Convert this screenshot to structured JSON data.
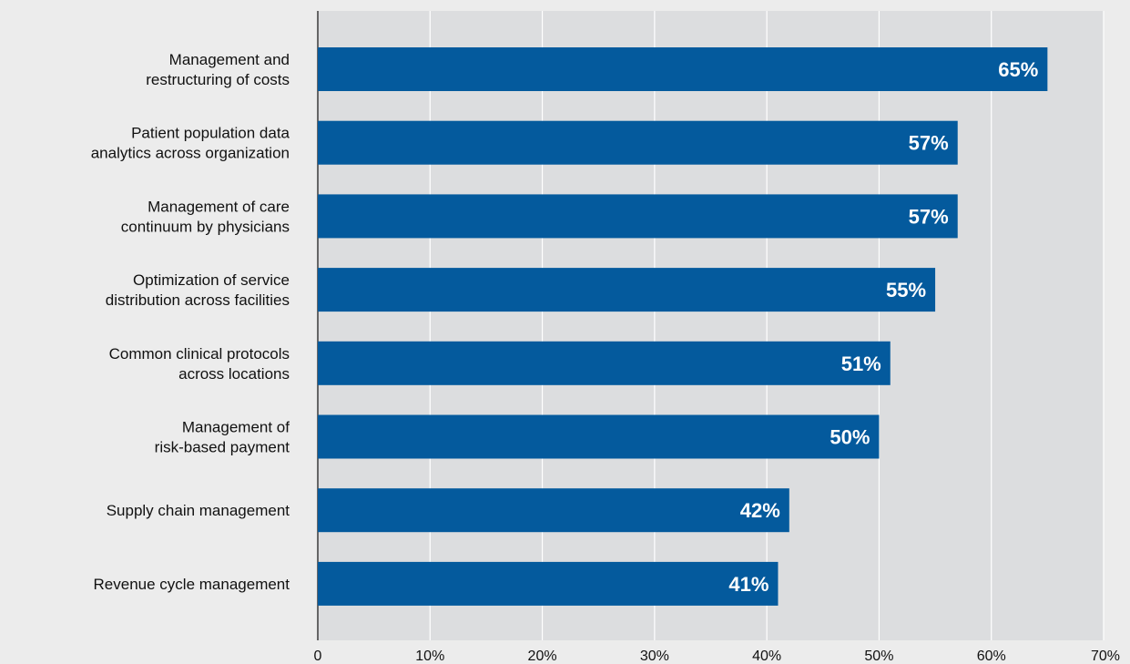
{
  "chart_data": {
    "type": "bar",
    "orientation": "horizontal",
    "categories": [
      [
        "Management and",
        "restructuring of costs"
      ],
      [
        "Patient population data",
        "analytics across organization"
      ],
      [
        "Management of care",
        "continuum by physicians"
      ],
      [
        "Optimization of service",
        "distribution across facilities"
      ],
      [
        "Common clinical protocols",
        "across locations"
      ],
      [
        "Management of",
        "risk-based payment"
      ],
      [
        "Supply chain management"
      ],
      [
        "Revenue cycle management"
      ]
    ],
    "values": [
      65,
      57,
      57,
      55,
      51,
      50,
      42,
      41
    ],
    "data_labels": [
      "65%",
      "57%",
      "57%",
      "55%",
      "51%",
      "50%",
      "42%",
      "41%"
    ],
    "xlim": [
      0,
      70
    ],
    "x_ticks": [
      0,
      10,
      20,
      30,
      40,
      50,
      60,
      70
    ],
    "x_tick_labels": [
      "0",
      "10%",
      "20%",
      "30%",
      "40%",
      "50%",
      "60%",
      "70%"
    ],
    "grid": true,
    "legend": "none",
    "title": "",
    "xlabel": "",
    "ylabel": ""
  },
  "colors": {
    "bar": "#045a9d",
    "plot_background": "#dcdddf",
    "page_background": "#ececec",
    "gridline": "#ffffff",
    "axis": "#111111",
    "data_label_text": "#ffffff"
  }
}
